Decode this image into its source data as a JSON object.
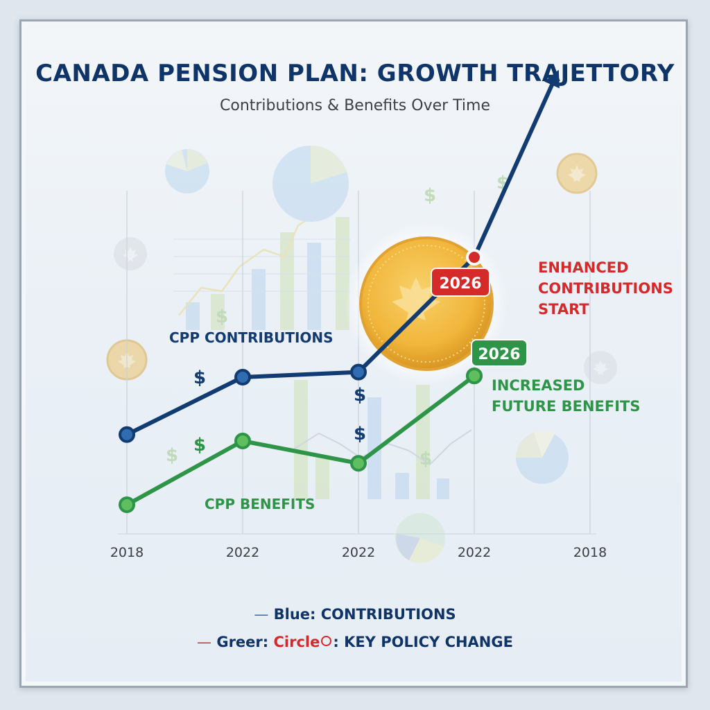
{
  "title": "CANADA PENSION PLAN: GROWTH TRAJETTORY",
  "subtitle": "Contributions & Benefits Over Time",
  "colors": {
    "contributions": "#123b72",
    "benefits": "#2e9448",
    "highlight": "#d42a2a",
    "coin": "#f2b73a"
  },
  "chart_data": {
    "type": "line",
    "categories": [
      "2018",
      "2022",
      "2022",
      "2022",
      "2018"
    ],
    "series": [
      {
        "name": "CPP CONTRIBUTIONS",
        "color": "#123b72",
        "values": [
          1.1,
          2.0,
          2.08,
          null,
          null
        ],
        "highlighted_point": {
          "label": "2026",
          "value": 3.88,
          "position": 3
        },
        "arrow_to": {
          "value": 6.7,
          "position": 3.7
        }
      },
      {
        "name": "CPP BENEFITS",
        "color": "#2e9448",
        "values": [
          0.0,
          1.0,
          0.65,
          2.02,
          null
        ],
        "highlighted_point": {
          "label": "2026",
          "position": 3
        }
      }
    ],
    "annotations": [
      {
        "series": "CPP CONTRIBUTIONS",
        "badge": "2026",
        "text": [
          "ENHANCED",
          "CONTRIBUTIONS",
          "START"
        ]
      },
      {
        "series": "CPP BENEFITS",
        "badge": "2026",
        "text": [
          "INCREASED",
          "FUTURE BENEFITS"
        ]
      }
    ],
    "y_scale": "unlabeled",
    "grid": "vertical"
  },
  "legend": {
    "dash": "—",
    "line1": "Blue: CONTRIBUTIONS",
    "line2_prefix": "Greer:",
    "line2_red": "Circle",
    "line2_suffix": ": KEY POLICY CHANGE"
  },
  "decorations": {
    "dollar_sign": "$",
    "icons": [
      "maple-leaf-coin-icon",
      "pie-chart-icon",
      "dollar-sign-icon",
      "bar-chart-icon"
    ]
  }
}
